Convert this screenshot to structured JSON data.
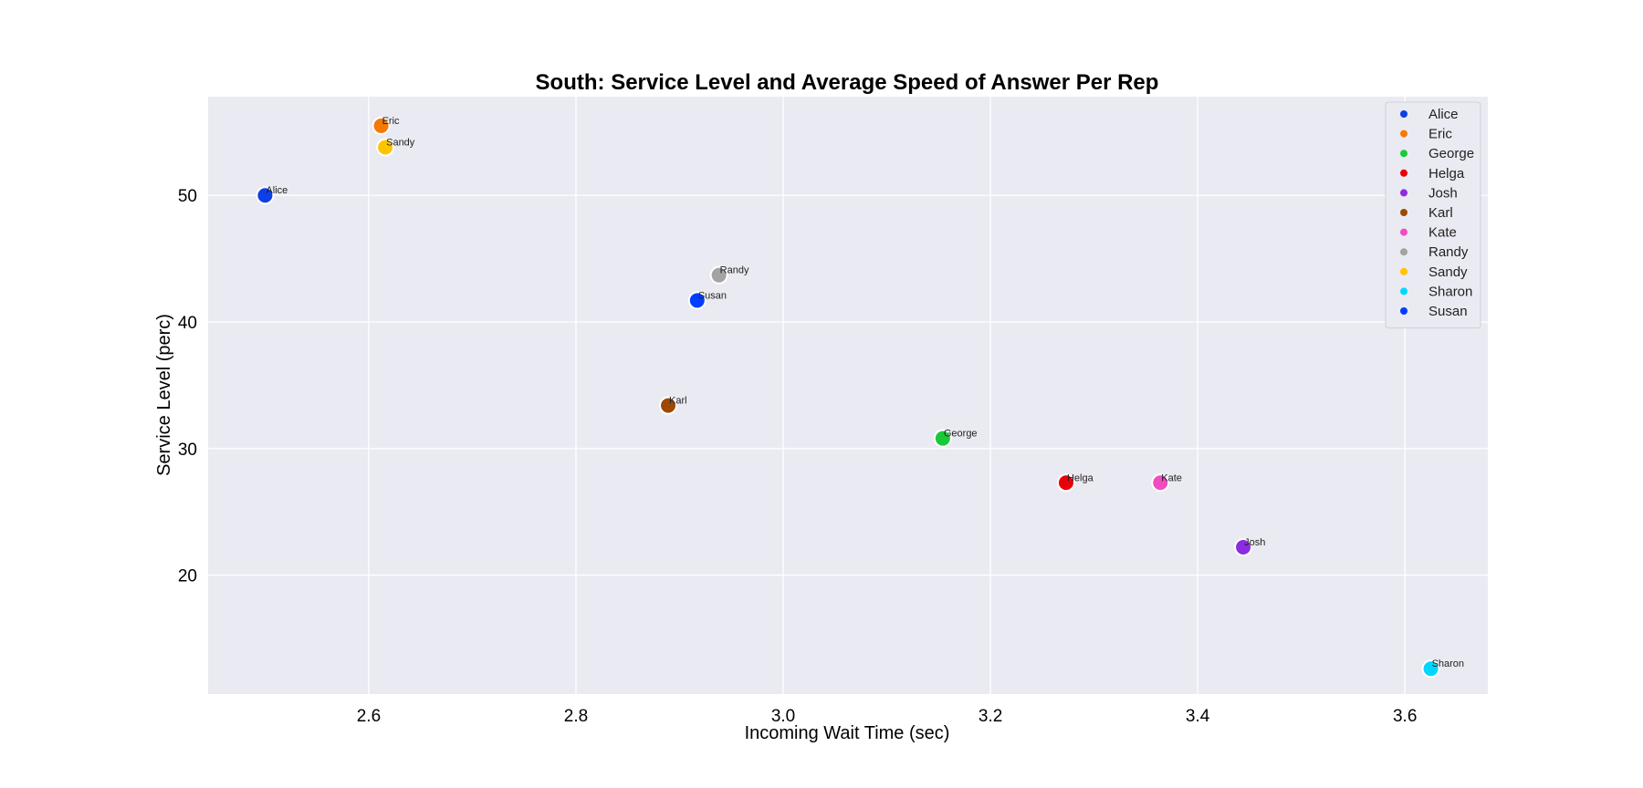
{
  "chart_data": {
    "type": "scatter",
    "title": "South: Service Level and Average Speed of Answer Per Rep",
    "xlabel": "Incoming Wait Time (sec)",
    "ylabel": "Service Level (perc)",
    "xlim": [
      2.445,
      3.68
    ],
    "ylim": [
      10.6,
      57.8
    ],
    "xticks": [
      2.6,
      2.8,
      3.0,
      3.2,
      3.4,
      3.6
    ],
    "xtick_labels": [
      "2.6",
      "2.8",
      "3.0",
      "3.2",
      "3.4",
      "3.6"
    ],
    "yticks": [
      20,
      30,
      40,
      50
    ],
    "ytick_labels": [
      "20",
      "30",
      "40",
      "50"
    ],
    "grid": true,
    "legend_position": "top-right",
    "points": [
      {
        "name": "Alice",
        "x": 2.5,
        "y": 50.0,
        "color": "#0d3fe8"
      },
      {
        "name": "Eric",
        "x": 2.612,
        "y": 55.5,
        "color": "#f47a06"
      },
      {
        "name": "George",
        "x": 3.154,
        "y": 30.8,
        "color": "#1ac938"
      },
      {
        "name": "Helga",
        "x": 3.273,
        "y": 27.3,
        "color": "#e8000b"
      },
      {
        "name": "Josh",
        "x": 3.444,
        "y": 22.2,
        "color": "#8b2be2"
      },
      {
        "name": "Karl",
        "x": 2.889,
        "y": 33.4,
        "color": "#9f4800"
      },
      {
        "name": "Kate",
        "x": 3.364,
        "y": 27.3,
        "color": "#f14cc1"
      },
      {
        "name": "Randy",
        "x": 2.938,
        "y": 43.7,
        "color": "#a3a3a3"
      },
      {
        "name": "Sandy",
        "x": 2.616,
        "y": 53.8,
        "color": "#ffc400"
      },
      {
        "name": "Sharon",
        "x": 3.625,
        "y": 12.6,
        "color": "#00d7ff"
      },
      {
        "name": "Susan",
        "x": 2.917,
        "y": 41.7,
        "color": "#023eff"
      }
    ]
  }
}
